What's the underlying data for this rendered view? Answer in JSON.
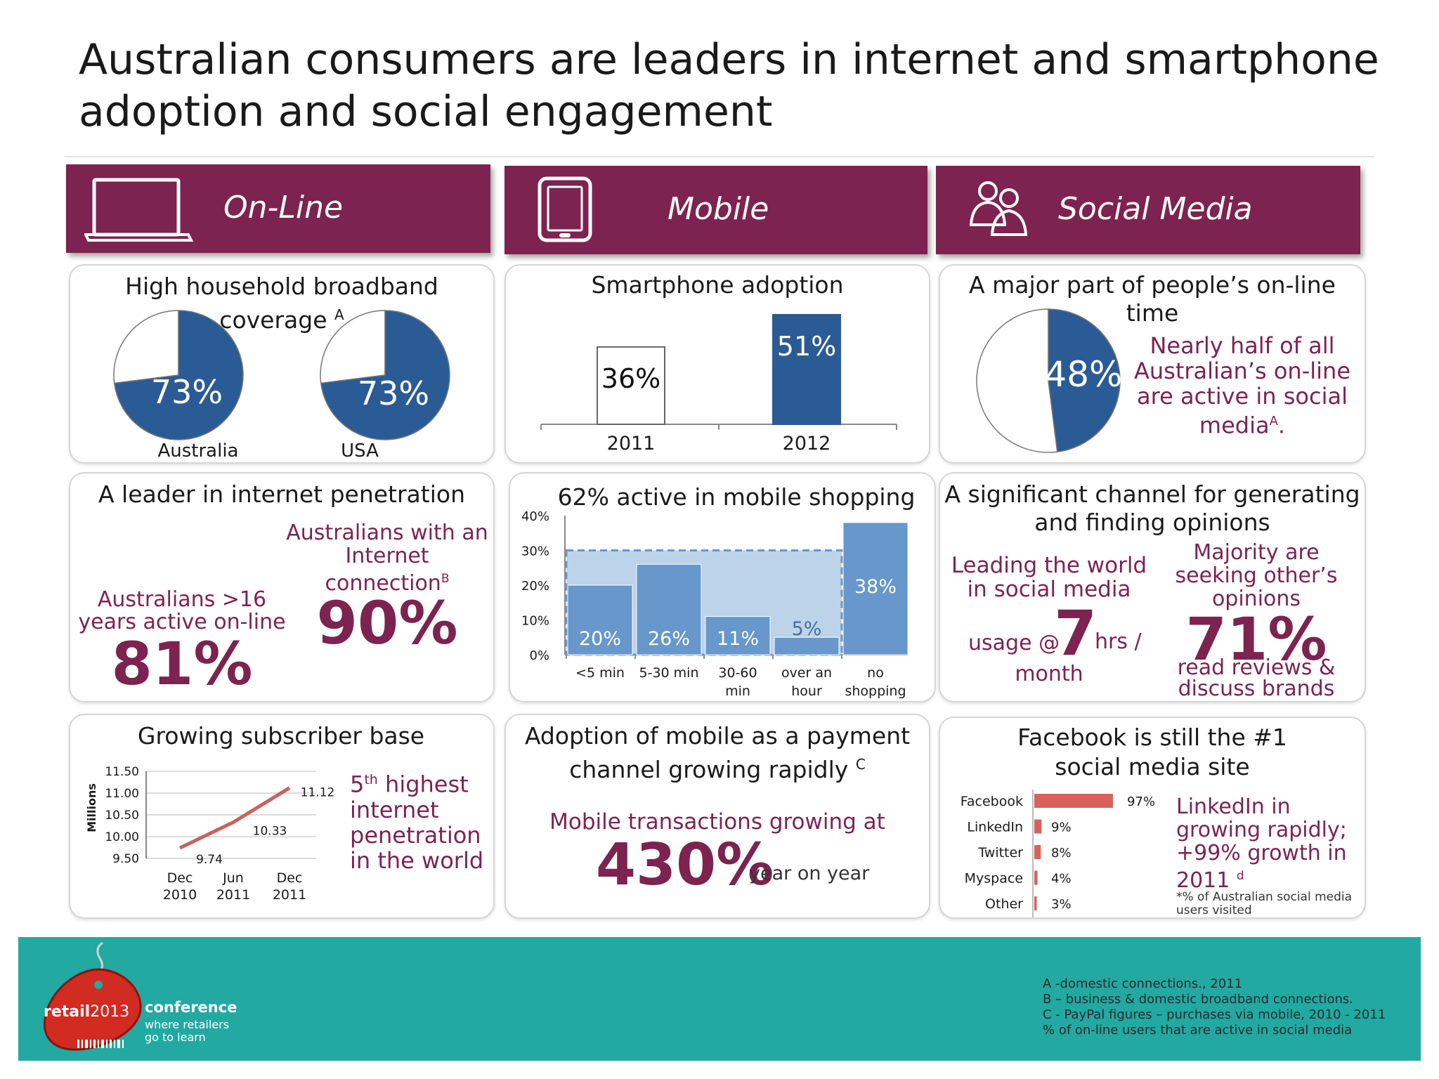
{
  "title_line1": "Australian consumers are leaders in internet and smartphone",
  "title_line2": "adoption and social engagement",
  "headers": {
    "online": "On-Line",
    "mobile": "Mobile",
    "social": "Social Media"
  },
  "colors": {
    "maroon": "#7d2350",
    "blue": "#2b5b95",
    "light_blue": "#6797cb",
    "red_bar": "#d7625c",
    "teal": "#21a9a2"
  },
  "icons": {
    "online": "laptop-icon",
    "mobile": "tablet-icon",
    "social": "people-icon"
  },
  "broadband": {
    "title_line1": "High household broadband",
    "title_line2": "coverage",
    "sup": "A",
    "chart_data": {
      "type": "pie",
      "series": [
        {
          "name": "Australia",
          "value": 73,
          "label": "73%"
        },
        {
          "name": "USA",
          "value": 73,
          "label": "73%"
        }
      ]
    }
  },
  "smartphone": {
    "title": "Smartphone adoption",
    "chart_data": {
      "type": "bar",
      "categories": [
        "2011",
        "2012"
      ],
      "values": [
        36,
        51
      ],
      "labels": [
        "36%",
        "51%"
      ]
    }
  },
  "social_time": {
    "title_line1": "A major part of people’s on-line",
    "title_line2": "time",
    "pie_label": "48%",
    "text_lines": [
      "Nearly half of all",
      "Australian’s on-line",
      "are active in social"
    ],
    "text_last": "media",
    "text_sup": "A",
    "text_end": ".",
    "chart_data": {
      "type": "pie",
      "values": [
        48
      ],
      "labels": [
        "48%"
      ]
    }
  },
  "internet_pen": {
    "title": "A leader in internet penetration",
    "left_lines": [
      "Australians >16",
      "years active on-line"
    ],
    "left_value": "81%",
    "right_lines": [
      "Australians with an",
      "Internet"
    ],
    "right_last": "connection",
    "right_sup": "B",
    "right_value": "90%"
  },
  "mobile_shopping": {
    "title": "62% active in mobile shopping",
    "chart_data": {
      "type": "bar",
      "categories": [
        "<5 min",
        "5-30 min",
        "30-60 min",
        "over an hour",
        "no shopping"
      ],
      "category_lines": [
        [
          "<5 min"
        ],
        [
          "5-30 min"
        ],
        [
          "30-60",
          "min"
        ],
        [
          "over an",
          "hour"
        ],
        [
          "no",
          "shopping"
        ]
      ],
      "values": [
        20,
        26,
        11,
        5,
        38
      ],
      "labels": [
        "20%",
        "26%",
        "11%",
        "5%",
        "38%"
      ],
      "ylim": [
        0,
        40
      ],
      "yticks": [
        "0%",
        "10%",
        "20%",
        "30%",
        "40%"
      ]
    }
  },
  "opinions": {
    "title_line1": "A significant channel for generating",
    "title_line2": "and finding opinions",
    "left_lines": [
      "Leading the world",
      "in social media"
    ],
    "usage_prefix": "usage @",
    "usage_value": "7",
    "usage_suffix": "hrs /",
    "usage_month": "month",
    "right_lines": [
      "Majority are",
      "seeking other’s",
      "opinions"
    ],
    "right_value": "71%",
    "right_bottom": [
      "read reviews &",
      "discuss brands"
    ]
  },
  "subscriber": {
    "title": "Growing subscriber base",
    "chart_data": {
      "type": "line",
      "x_lines": [
        [
          "Dec",
          "2010"
        ],
        [
          "Jun",
          "2011"
        ],
        [
          "Dec",
          "2011"
        ]
      ],
      "values": [
        9.74,
        10.33,
        11.12
      ],
      "labels": [
        "9.74",
        "10.33",
        "11.12"
      ],
      "ylim": [
        9.5,
        11.5
      ],
      "yticks": [
        "9.50",
        "10.00",
        "10.50",
        "11.00",
        "11.50"
      ],
      "ylabel": "Millions"
    },
    "text_rank": "5",
    "text_rank_sup": "th",
    "text_first_rest": " highest",
    "text_lines": [
      "internet",
      "penetration",
      "in the world"
    ]
  },
  "payment": {
    "title_line1": "Adoption of mobile as a payment",
    "title_line2": "channel growing rapidly",
    "sup": "C",
    "subtitle": "Mobile transactions growing at",
    "value": "430%",
    "suffix": "year on year"
  },
  "facebook": {
    "title_line1": "Facebook is still the #1",
    "title_line2": "social media site",
    "chart_data": {
      "type": "bar",
      "orientation": "horizontal",
      "categories": [
        "Facebook",
        "LinkedIn",
        "Twitter",
        "Myspace",
        "Other"
      ],
      "values": [
        97,
        9,
        8,
        4,
        3
      ],
      "labels": [
        "97%",
        "9%",
        "8%",
        "4%",
        "3%"
      ]
    },
    "text_lines": [
      "LinkedIn in",
      "growing rapidly;",
      "+99% growth in"
    ],
    "text_last": "2011",
    "text_sup": "d",
    "note_lines": [
      "*% of Australian social media",
      "users visited"
    ]
  },
  "footer": {
    "logo_word": "retail",
    "logo_year": "2013",
    "logo_conf": "conference",
    "logo_tag1": "where retailers",
    "logo_tag2": "go to learn",
    "notes": [
      "A -domestic connections., 2011",
      "B – business & domestic broadband connections.",
      "C - PayPal figures – purchases via mobile, 2010 - 2011",
      "% of on-line users that are active in social media"
    ]
  }
}
